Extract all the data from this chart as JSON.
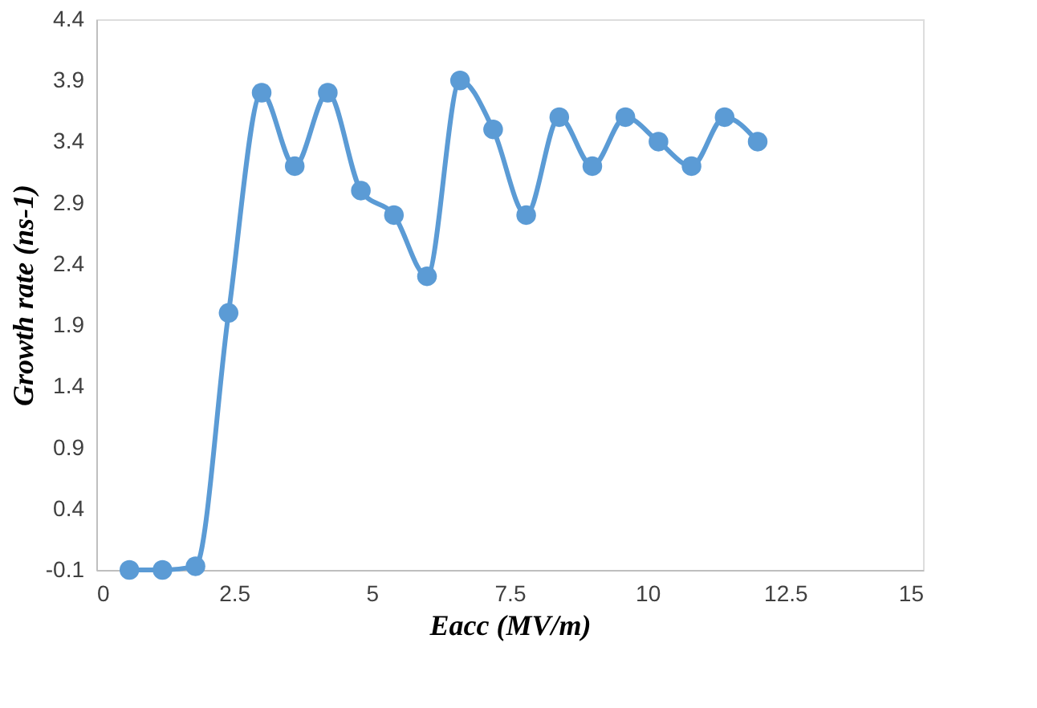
{
  "chart_data": {
    "type": "line",
    "xlabel": "Eacc (MV/m)",
    "ylabel": "Growth rate (ns-1)",
    "x": [
      0.6,
      1.2,
      1.8,
      2.4,
      3.0,
      3.6,
      4.2,
      4.8,
      5.4,
      6.0,
      6.6,
      7.2,
      7.8,
      8.4,
      9.0,
      9.6,
      10.2,
      10.8,
      11.4,
      12.0
    ],
    "series": [
      {
        "color": "#5b9bd5",
        "values": [
          -0.1,
          -0.1,
          -0.07,
          2.0,
          3.8,
          3.2,
          3.8,
          3.0,
          2.8,
          2.3,
          3.9,
          3.5,
          2.8,
          3.6,
          3.2,
          3.6,
          3.4,
          3.2,
          3.6,
          3.4
        ]
      }
    ],
    "xlim": [
      0,
      15
    ],
    "xticks": [
      0,
      2.5,
      5,
      7.5,
      10,
      12.5,
      15
    ],
    "ylim": [
      -0.1,
      4.4
    ],
    "yticks": [
      -0.1,
      0.4,
      0.9,
      1.4,
      1.9,
      2.4,
      2.9,
      3.4,
      3.9,
      4.4
    ],
    "grid": false,
    "marker": "circle",
    "line_style": "solid"
  }
}
